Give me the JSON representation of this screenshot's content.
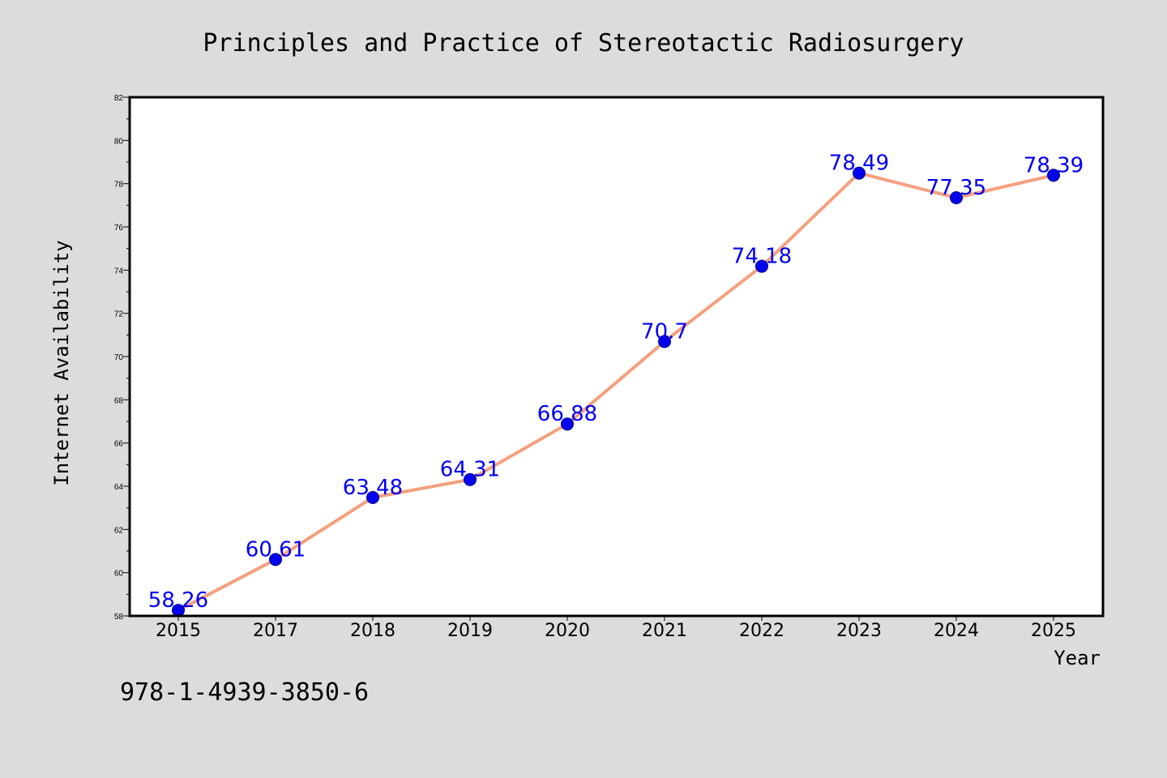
{
  "figure": {
    "isbn": "978-1-4939-3850-6"
  },
  "colors": {
    "background": "#dcdcdc",
    "plot_background": "#ffffff",
    "line": "#f4a07e",
    "marker": "#0000ee",
    "data_label": "#0000ee"
  },
  "chart_data": {
    "type": "line",
    "title": "Principles and Practice of Stereotactic Radiosurgery",
    "xlabel": "Year",
    "ylabel": "Internet Availability",
    "categories": [
      "2015",
      "2017",
      "2018",
      "2019",
      "2020",
      "2021",
      "2022",
      "2023",
      "2024",
      "2025"
    ],
    "series": [
      {
        "values": [
          58.26,
          60.61,
          63.48,
          64.31,
          66.88,
          70.7,
          74.18,
          78.49,
          77.35,
          78.39
        ],
        "labels": [
          "58.26",
          "60.61",
          "63.48",
          "64.31",
          "66.88",
          "70.7",
          "74.18",
          "78.49",
          "77.35",
          "78.39"
        ]
      }
    ],
    "ylim": [
      58,
      82
    ],
    "yticks": [
      58,
      60,
      62,
      64,
      66,
      68,
      70,
      72,
      74,
      76,
      78,
      80,
      82
    ],
    "grid": false,
    "legend": "none",
    "markers": true,
    "data_labels": true
  }
}
